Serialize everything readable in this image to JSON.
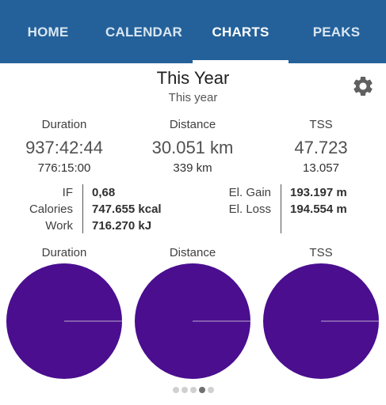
{
  "tabs": [
    {
      "label": "HOME",
      "active": false
    },
    {
      "label": "CALENDAR",
      "active": false
    },
    {
      "label": "CHARTS",
      "active": true
    },
    {
      "label": "PEAKS",
      "active": false
    }
  ],
  "header": {
    "title": "This Year",
    "subtitle": "This year",
    "settings_icon": "gear-icon"
  },
  "stats": [
    {
      "label": "Duration",
      "value": "937:42:44",
      "sub": "776:15:00"
    },
    {
      "label": "Distance",
      "value": "30.051 km",
      "sub": "339 km"
    },
    {
      "label": "TSS",
      "value": "47.723",
      "sub": "13.057"
    }
  ],
  "metrics_left": [
    {
      "label": "IF",
      "value": "0,68"
    },
    {
      "label": "Calories",
      "value": "747.655 kcal"
    },
    {
      "label": "Work",
      "value": "716.270 kJ"
    }
  ],
  "metrics_right": [
    {
      "label": "El. Gain",
      "value": "193.197 m"
    },
    {
      "label": "El. Loss",
      "value": "194.554 m"
    }
  ],
  "charts": [
    {
      "label": "Duration"
    },
    {
      "label": "Distance"
    },
    {
      "label": "TSS"
    }
  ],
  "colors": {
    "header_bg": "#24619a",
    "pie_fill": "#4a0e8f",
    "pie_line": "#b9a9cf"
  },
  "pagination": {
    "count": 5,
    "active_index": 3
  }
}
